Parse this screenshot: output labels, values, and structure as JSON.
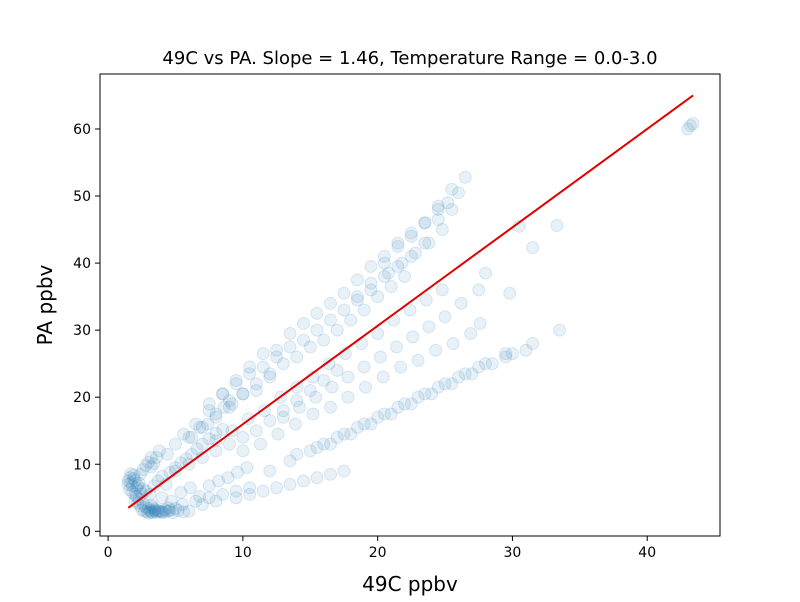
{
  "chart_data": {
    "type": "scatter",
    "title": "49C vs PA.   Slope = 1.46,   Temperature Range = 0.0-3.0",
    "xlabel": "49C ppbv",
    "ylabel": "PA ppbv",
    "xlim": [
      -0.6,
      45.4
    ],
    "ylim": [
      -0.7,
      68.2
    ],
    "x_ticks": [
      0,
      10,
      20,
      30,
      40
    ],
    "y_ticks": [
      0,
      10,
      20,
      30,
      40,
      50,
      60
    ],
    "grid": false,
    "legend": "none",
    "colors": {
      "points": "#1f77b4",
      "fit_line": "#e00000"
    },
    "fit_line": {
      "slope": 1.46,
      "x": [
        1.5,
        43.4
      ],
      "y": [
        3.5,
        65.0
      ]
    },
    "series": [
      {
        "x": [
          1.5,
          1.6,
          1.7,
          1.8,
          1.9,
          2.0,
          2.1,
          1.6,
          1.8,
          2.0,
          2.2,
          2.3,
          2.4,
          1.5,
          1.7,
          1.9,
          2.1,
          2.3,
          2.5,
          2.6,
          2.0,
          2.2,
          2.4,
          2.6,
          2.8,
          3.0,
          3.2,
          2.5,
          2.7,
          2.9,
          3.1,
          3.3,
          3.5,
          3.0,
          3.2,
          3.4,
          3.6,
          3.8,
          4.0,
          4.2,
          4.5,
          4.8,
          5.2,
          5.6,
          6.0,
          3.3,
          3.5,
          3.7,
          3.9,
          4.1,
          4.3,
          4.6,
          5.0,
          2.4,
          2.6,
          2.8,
          3.0,
          3.2,
          3.4,
          3.6,
          2.8,
          3.1,
          3.4,
          3.7,
          4.0,
          4.3,
          4.6,
          5.0,
          5.4,
          5.8,
          6.2,
          6.6,
          7.0,
          7.5,
          8.0,
          8.5,
          3.2,
          3.8,
          4.4,
          5.0,
          5.6,
          6.2,
          6.8,
          7.4,
          8.0,
          8.6,
          9.2,
          4.0,
          4.7,
          5.4,
          6.1,
          6.8,
          7.5,
          8.2,
          8.9,
          9.6,
          10.3,
          6.0,
          7.0,
          8.0,
          9.0,
          10.0,
          11.0,
          12.0,
          7.5,
          8.5,
          9.5,
          10.5,
          11.5,
          12.5,
          13.5,
          14.5,
          15.5,
          16.5,
          17.5,
          18.5,
          19.5,
          20.5,
          21.5,
          22.5,
          23.5,
          24.5,
          25.5,
          26.0,
          26.5,
          8.0,
          9.2,
          10.4,
          11.6,
          12.8,
          14.0,
          15.2,
          16.4,
          17.6,
          18.8,
          20.0,
          21.2,
          22.4,
          23.6,
          24.8,
          10.0,
          11.3,
          12.6,
          13.9,
          15.2,
          16.5,
          17.8,
          19.1,
          20.4,
          21.7,
          23.0,
          24.3,
          25.6,
          26.9,
          27.6,
          12.0,
          13.5,
          15.0,
          16.5,
          18.0,
          19.5,
          21.0,
          22.5,
          24.0,
          25.5,
          27.0,
          28.5,
          30.0,
          31.5,
          33.5,
          14.0,
          15.5,
          17.0,
          18.5,
          20.0,
          21.5,
          23.0,
          24.5,
          26.0,
          27.5,
          29.5,
          31.0,
          16.0,
          17.5,
          19.0,
          20.5,
          22.0,
          23.5,
          25.0,
          26.5,
          28.0,
          29.5,
          13.0,
          14.2,
          15.4,
          16.6,
          17.8,
          19.0,
          20.2,
          21.4,
          22.6,
          23.8,
          25.0,
          26.2,
          9.0,
          10.0,
          11.0,
          12.0,
          13.0,
          14.0,
          15.0,
          16.0,
          17.0,
          18.0,
          19.0,
          20.0,
          21.0,
          22.0,
          5.0,
          6.0,
          7.0,
          8.0,
          9.0,
          10.0,
          11.0,
          12.0,
          13.0,
          14.0,
          15.0,
          16.0,
          17.0,
          43.2,
          43.4,
          43.0,
          33.3,
          31.5,
          30.5,
          29.8,
          28.0,
          27.5,
          20.5,
          21.5,
          22.5,
          23.5,
          24.5,
          25.2,
          18.5,
          19.5,
          20.8,
          21.8,
          22.8,
          23.8,
          24.8,
          7.0,
          8.0,
          9.5,
          10.5,
          11.5,
          12.5,
          13.5,
          14.5,
          15.5,
          16.5,
          17.5,
          4.5,
          5.5,
          6.5,
          7.5,
          8.5,
          9.5,
          10.5,
          6.5,
          7.5,
          8.5,
          9.5,
          10.5,
          11.5,
          12.5,
          13.5,
          14.5,
          15.5,
          16.5,
          17.5,
          18.5,
          19.5,
          20.5,
          21.5,
          22.5,
          23.5,
          24.5,
          25.5
        ],
        "y": [
          7.5,
          8.0,
          7.2,
          6.8,
          8.4,
          7.6,
          6.5,
          6.2,
          5.8,
          5.5,
          6.8,
          7.2,
          6.0,
          7.0,
          8.6,
          7.9,
          5.2,
          4.8,
          5.5,
          6.3,
          4.5,
          4.2,
          3.8,
          4.1,
          3.6,
          3.4,
          3.9,
          3.2,
          3.0,
          2.9,
          3.1,
          2.8,
          3.0,
          2.7,
          2.9,
          3.1,
          2.8,
          3.0,
          2.9,
          3.2,
          3.0,
          2.8,
          3.1,
          2.9,
          3.0,
          3.6,
          3.3,
          3.1,
          2.9,
          2.8,
          3.0,
          3.2,
          3.4,
          8.5,
          9.2,
          9.8,
          10.3,
          9.6,
          10.1,
          11.0,
          6.0,
          5.5,
          6.8,
          7.5,
          8.2,
          7.0,
          8.8,
          9.5,
          10.2,
          10.8,
          11.5,
          12.3,
          13.0,
          13.8,
          14.6,
          15.2,
          11.0,
          12.0,
          11.5,
          13.0,
          14.5,
          14.0,
          15.5,
          16.0,
          17.5,
          18.5,
          19.0,
          5.0,
          4.5,
          5.8,
          6.5,
          5.2,
          6.8,
          7.5,
          8.0,
          8.8,
          9.5,
          14.0,
          15.5,
          17.0,
          18.5,
          20.5,
          21.0,
          23.0,
          19.0,
          20.5,
          22.0,
          23.5,
          24.5,
          26.0,
          27.5,
          28.5,
          30.0,
          31.5,
          33.0,
          34.5,
          36.0,
          38.0,
          39.5,
          41.0,
          43.0,
          46.5,
          48.0,
          50.5,
          52.8,
          13.5,
          15.0,
          16.8,
          18.0,
          20.0,
          21.5,
          23.0,
          25.0,
          26.5,
          28.0,
          29.5,
          31.5,
          33.0,
          34.5,
          36.0,
          12.0,
          13.0,
          14.5,
          16.0,
          17.5,
          18.5,
          20.0,
          21.5,
          23.0,
          24.5,
          25.5,
          27.0,
          28.0,
          29.5,
          31.0,
          9.0,
          10.5,
          12.0,
          13.0,
          14.5,
          16.0,
          17.5,
          19.0,
          20.5,
          22.0,
          23.5,
          25.0,
          26.5,
          28.0,
          30.0,
          11.5,
          12.5,
          14.0,
          15.5,
          17.0,
          18.5,
          20.0,
          21.5,
          23.0,
          24.5,
          26.0,
          27.0,
          13.0,
          14.5,
          16.0,
          17.5,
          19.0,
          20.5,
          22.0,
          23.5,
          25.0,
          26.5,
          17.0,
          18.5,
          20.0,
          21.5,
          23.0,
          24.5,
          26.0,
          27.5,
          29.0,
          30.5,
          32.0,
          34.0,
          19.5,
          20.5,
          22.0,
          23.5,
          25.0,
          26.0,
          27.5,
          28.5,
          30.0,
          31.5,
          33.0,
          35.0,
          36.5,
          38.0,
          9.0,
          10.0,
          11.0,
          12.0,
          13.0,
          14.0,
          15.0,
          16.5,
          18.0,
          19.5,
          21.0,
          22.5,
          24.0,
          60.5,
          60.8,
          60.0,
          45.6,
          42.3,
          45.5,
          35.5,
          38.5,
          36.0,
          40.0,
          42.5,
          44.0,
          46.0,
          48.5,
          49.0,
          35.0,
          37.0,
          38.5,
          40.0,
          41.5,
          43.0,
          45.0,
          4.0,
          4.5,
          5.0,
          5.5,
          6.0,
          6.5,
          7.0,
          7.5,
          8.0,
          8.5,
          9.0,
          3.5,
          4.0,
          4.5,
          5.0,
          5.5,
          6.0,
          6.5,
          16.0,
          18.0,
          20.5,
          22.5,
          24.5,
          26.5,
          27.0,
          29.5,
          31.0,
          32.5,
          34.0,
          35.5,
          37.5,
          39.5,
          41.0,
          43.0,
          44.5,
          46.0,
          48.0,
          51.0
        ]
      }
    ]
  }
}
